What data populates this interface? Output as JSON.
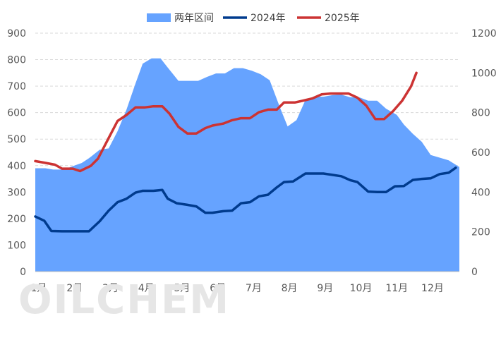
{
  "chart_data": {
    "type": "area",
    "legend": [
      {
        "name": "两年区间",
        "color": "#66a3ff",
        "kind": "area"
      },
      {
        "name": "2024年",
        "color": "#003b8e",
        "kind": "line"
      },
      {
        "name": "2025年",
        "color": "#cc3333",
        "kind": "line"
      }
    ],
    "legend_position": "top",
    "watermark": "OILCHEM",
    "grid": true,
    "x_range": [
      0,
      11.85
    ],
    "x_tick_labels": [
      "1月",
      "2月",
      "3月",
      "4月",
      "5月",
      "6月",
      "7月",
      "8月",
      "9月",
      "10月",
      "11月",
      "12月"
    ],
    "y_left": {
      "min": 0,
      "max": 900,
      "ticks": [
        "0",
        "100",
        "200",
        "300",
        "400",
        "500",
        "600",
        "700",
        "800",
        "900"
      ]
    },
    "y_right": {
      "min": 0,
      "max": 1200,
      "ticks": [
        "0",
        "200",
        "400",
        "600",
        "800",
        "1000",
        "1200"
      ]
    },
    "range_band": {
      "name": "两年区间",
      "axis": "left",
      "x": [
        0,
        0.28,
        0.5,
        0.8,
        1.05,
        1.3,
        1.5,
        1.8,
        2.05,
        2.3,
        2.55,
        2.8,
        3.0,
        3.25,
        3.5,
        3.7,
        4.0,
        4.25,
        4.55,
        4.8,
        5.05,
        5.3,
        5.55,
        5.8,
        6.05,
        6.3,
        6.55,
        6.85,
        7.05,
        7.3,
        7.55,
        7.8,
        8.05,
        8.3,
        8.55,
        8.8,
        9.05,
        9.3,
        9.55,
        9.8,
        10.1,
        10.3,
        10.55,
        10.8,
        11.05,
        11.3,
        11.55,
        11.85
      ],
      "upper": [
        390,
        390,
        385,
        385,
        398,
        410,
        428,
        460,
        465,
        530,
        612,
        710,
        785,
        805,
        805,
        770,
        720,
        720,
        720,
        735,
        748,
        748,
        768,
        768,
        758,
        745,
        722,
        615,
        548,
        572,
        648,
        660,
        660,
        666,
        668,
        658,
        658,
        645,
        645,
        615,
        592,
        555,
        520,
        490,
        440,
        430,
        420,
        395
      ],
      "lower": [
        0,
        0,
        0,
        0,
        0,
        0,
        0,
        0,
        0,
        0,
        0,
        0,
        0,
        0,
        0,
        0,
        0,
        0,
        0,
        0,
        0,
        0,
        0,
        0,
        0,
        0,
        0,
        0,
        0,
        0,
        0,
        0,
        0,
        0,
        0,
        0,
        0,
        0,
        0,
        0,
        0,
        0,
        0,
        0,
        0,
        0,
        0,
        0
      ]
    },
    "series": [
      {
        "name": "2024年",
        "axis": "left",
        "color": "#003b8e",
        "x": [
          0,
          0.25,
          0.45,
          0.75,
          1.05,
          1.3,
          1.5,
          1.8,
          2.05,
          2.3,
          2.55,
          2.8,
          3.0,
          3.3,
          3.55,
          3.7,
          3.95,
          4.25,
          4.5,
          4.75,
          4.95,
          5.25,
          5.5,
          5.75,
          6.0,
          6.25,
          6.5,
          6.75,
          6.95,
          7.2,
          7.55,
          7.8,
          8.05,
          8.25,
          8.55,
          8.8,
          9.0,
          9.3,
          9.55,
          9.8,
          10.05,
          10.3,
          10.55,
          10.8,
          11.05,
          11.3,
          11.55,
          11.75
        ],
        "values": [
          208,
          192,
          153,
          152,
          152,
          152,
          152,
          190,
          230,
          262,
          275,
          298,
          305,
          305,
          308,
          275,
          258,
          252,
          246,
          222,
          222,
          228,
          230,
          258,
          262,
          284,
          290,
          318,
          338,
          340,
          370,
          370,
          370,
          366,
          360,
          345,
          338,
          302,
          300,
          300,
          322,
          323,
          346,
          350,
          352,
          368,
          373,
          392
        ]
      },
      {
        "name": "2025年",
        "axis": "right",
        "color": "#cc3333",
        "x": [
          0,
          0.25,
          0.55,
          0.75,
          1.05,
          1.25,
          1.55,
          1.75,
          2.05,
          2.3,
          2.55,
          2.8,
          3.05,
          3.3,
          3.55,
          3.75,
          4.0,
          4.25,
          4.5,
          4.75,
          4.95,
          5.25,
          5.5,
          5.75,
          6.0,
          6.25,
          6.5,
          6.75,
          6.95,
          7.25,
          7.5,
          7.75,
          8.0,
          8.25,
          8.5,
          8.75,
          9.0,
          9.25,
          9.5,
          9.75,
          10.0,
          10.25,
          10.5,
          10.65
        ],
        "values": [
          556,
          548,
          538,
          518,
          518,
          506,
          532,
          568,
          672,
          758,
          788,
          826,
          826,
          832,
          832,
          795,
          728,
          695,
          695,
          722,
          735,
          745,
          762,
          772,
          772,
          802,
          815,
          815,
          851,
          851,
          861,
          872,
          892,
          896,
          896,
          896,
          875,
          835,
          768,
          768,
          808,
          860,
          932,
          1000
        ]
      }
    ]
  }
}
